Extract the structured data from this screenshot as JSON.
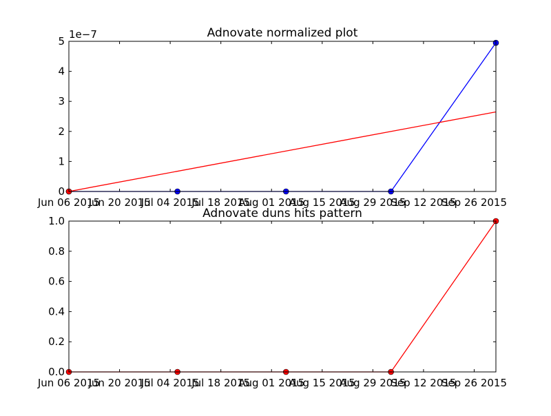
{
  "chart_data": [
    {
      "type": "line",
      "title": "Adnovate normalized plot",
      "xlabel": "",
      "ylabel": "",
      "y_offset_label": "1e−7",
      "x_tick_labels": [
        "Jun 06 2015",
        "Jun 20 2015",
        "Jul 04 2015",
        "Jul 18 2015",
        "Aug 01 2015",
        "Aug 15 2015",
        "Aug 29 2015",
        "Sep 12 2015",
        "Sep 26 2015"
      ],
      "x_ticks": [
        "2015-06-06",
        "2015-06-20",
        "2015-07-04",
        "2015-07-18",
        "2015-08-01",
        "2015-08-15",
        "2015-08-29",
        "2015-09-12",
        "2015-09-26"
      ],
      "xlim": [
        "2015-06-06",
        "2015-10-02"
      ],
      "y_ticks": [
        0,
        1,
        2,
        3,
        4,
        5
      ],
      "y_tick_labels": [
        "0",
        "1",
        "2",
        "3",
        "4",
        "5"
      ],
      "ylim": [
        0,
        5
      ],
      "grid": false,
      "series": [
        {
          "color": "#0000ff",
          "marker": "circle",
          "x": [
            "2015-06-06",
            "2015-07-06",
            "2015-08-05",
            "2015-09-03",
            "2015-10-02"
          ],
          "y": [
            0,
            0,
            0,
            0,
            4.95
          ]
        },
        {
          "color": "#ff0000",
          "marker": "none",
          "x": [
            "2015-06-06",
            "2015-10-02"
          ],
          "y": [
            0,
            2.65
          ]
        },
        {
          "color": "#ff0000",
          "marker": "circle",
          "x": [
            "2015-06-06"
          ],
          "y": [
            0
          ]
        }
      ]
    },
    {
      "type": "line",
      "title": "Adnovate duns hits pattern",
      "xlabel": "",
      "ylabel": "",
      "x_tick_labels": [
        "Jun 06 2015",
        "Jun 20 2015",
        "Jul 04 2015",
        "Jul 18 2015",
        "Aug 01 2015",
        "Aug 15 2015",
        "Aug 29 2015",
        "Sep 12 2015",
        "Sep 26 2015"
      ],
      "x_ticks": [
        "2015-06-06",
        "2015-06-20",
        "2015-07-04",
        "2015-07-18",
        "2015-08-01",
        "2015-08-15",
        "2015-08-29",
        "2015-09-12",
        "2015-09-26"
      ],
      "xlim": [
        "2015-06-06",
        "2015-10-02"
      ],
      "y_ticks": [
        0,
        0.2,
        0.4,
        0.6,
        0.8,
        1.0
      ],
      "y_tick_labels": [
        "0.0",
        "0.2",
        "0.4",
        "0.6",
        "0.8",
        "1.0"
      ],
      "ylim": [
        0,
        1
      ],
      "grid": false,
      "series": [
        {
          "color": "#ff0000",
          "marker": "circle",
          "x": [
            "2015-06-06",
            "2015-07-06",
            "2015-08-05",
            "2015-09-03",
            "2015-10-02"
          ],
          "y": [
            0,
            0,
            0,
            0,
            1.0
          ]
        }
      ]
    }
  ]
}
